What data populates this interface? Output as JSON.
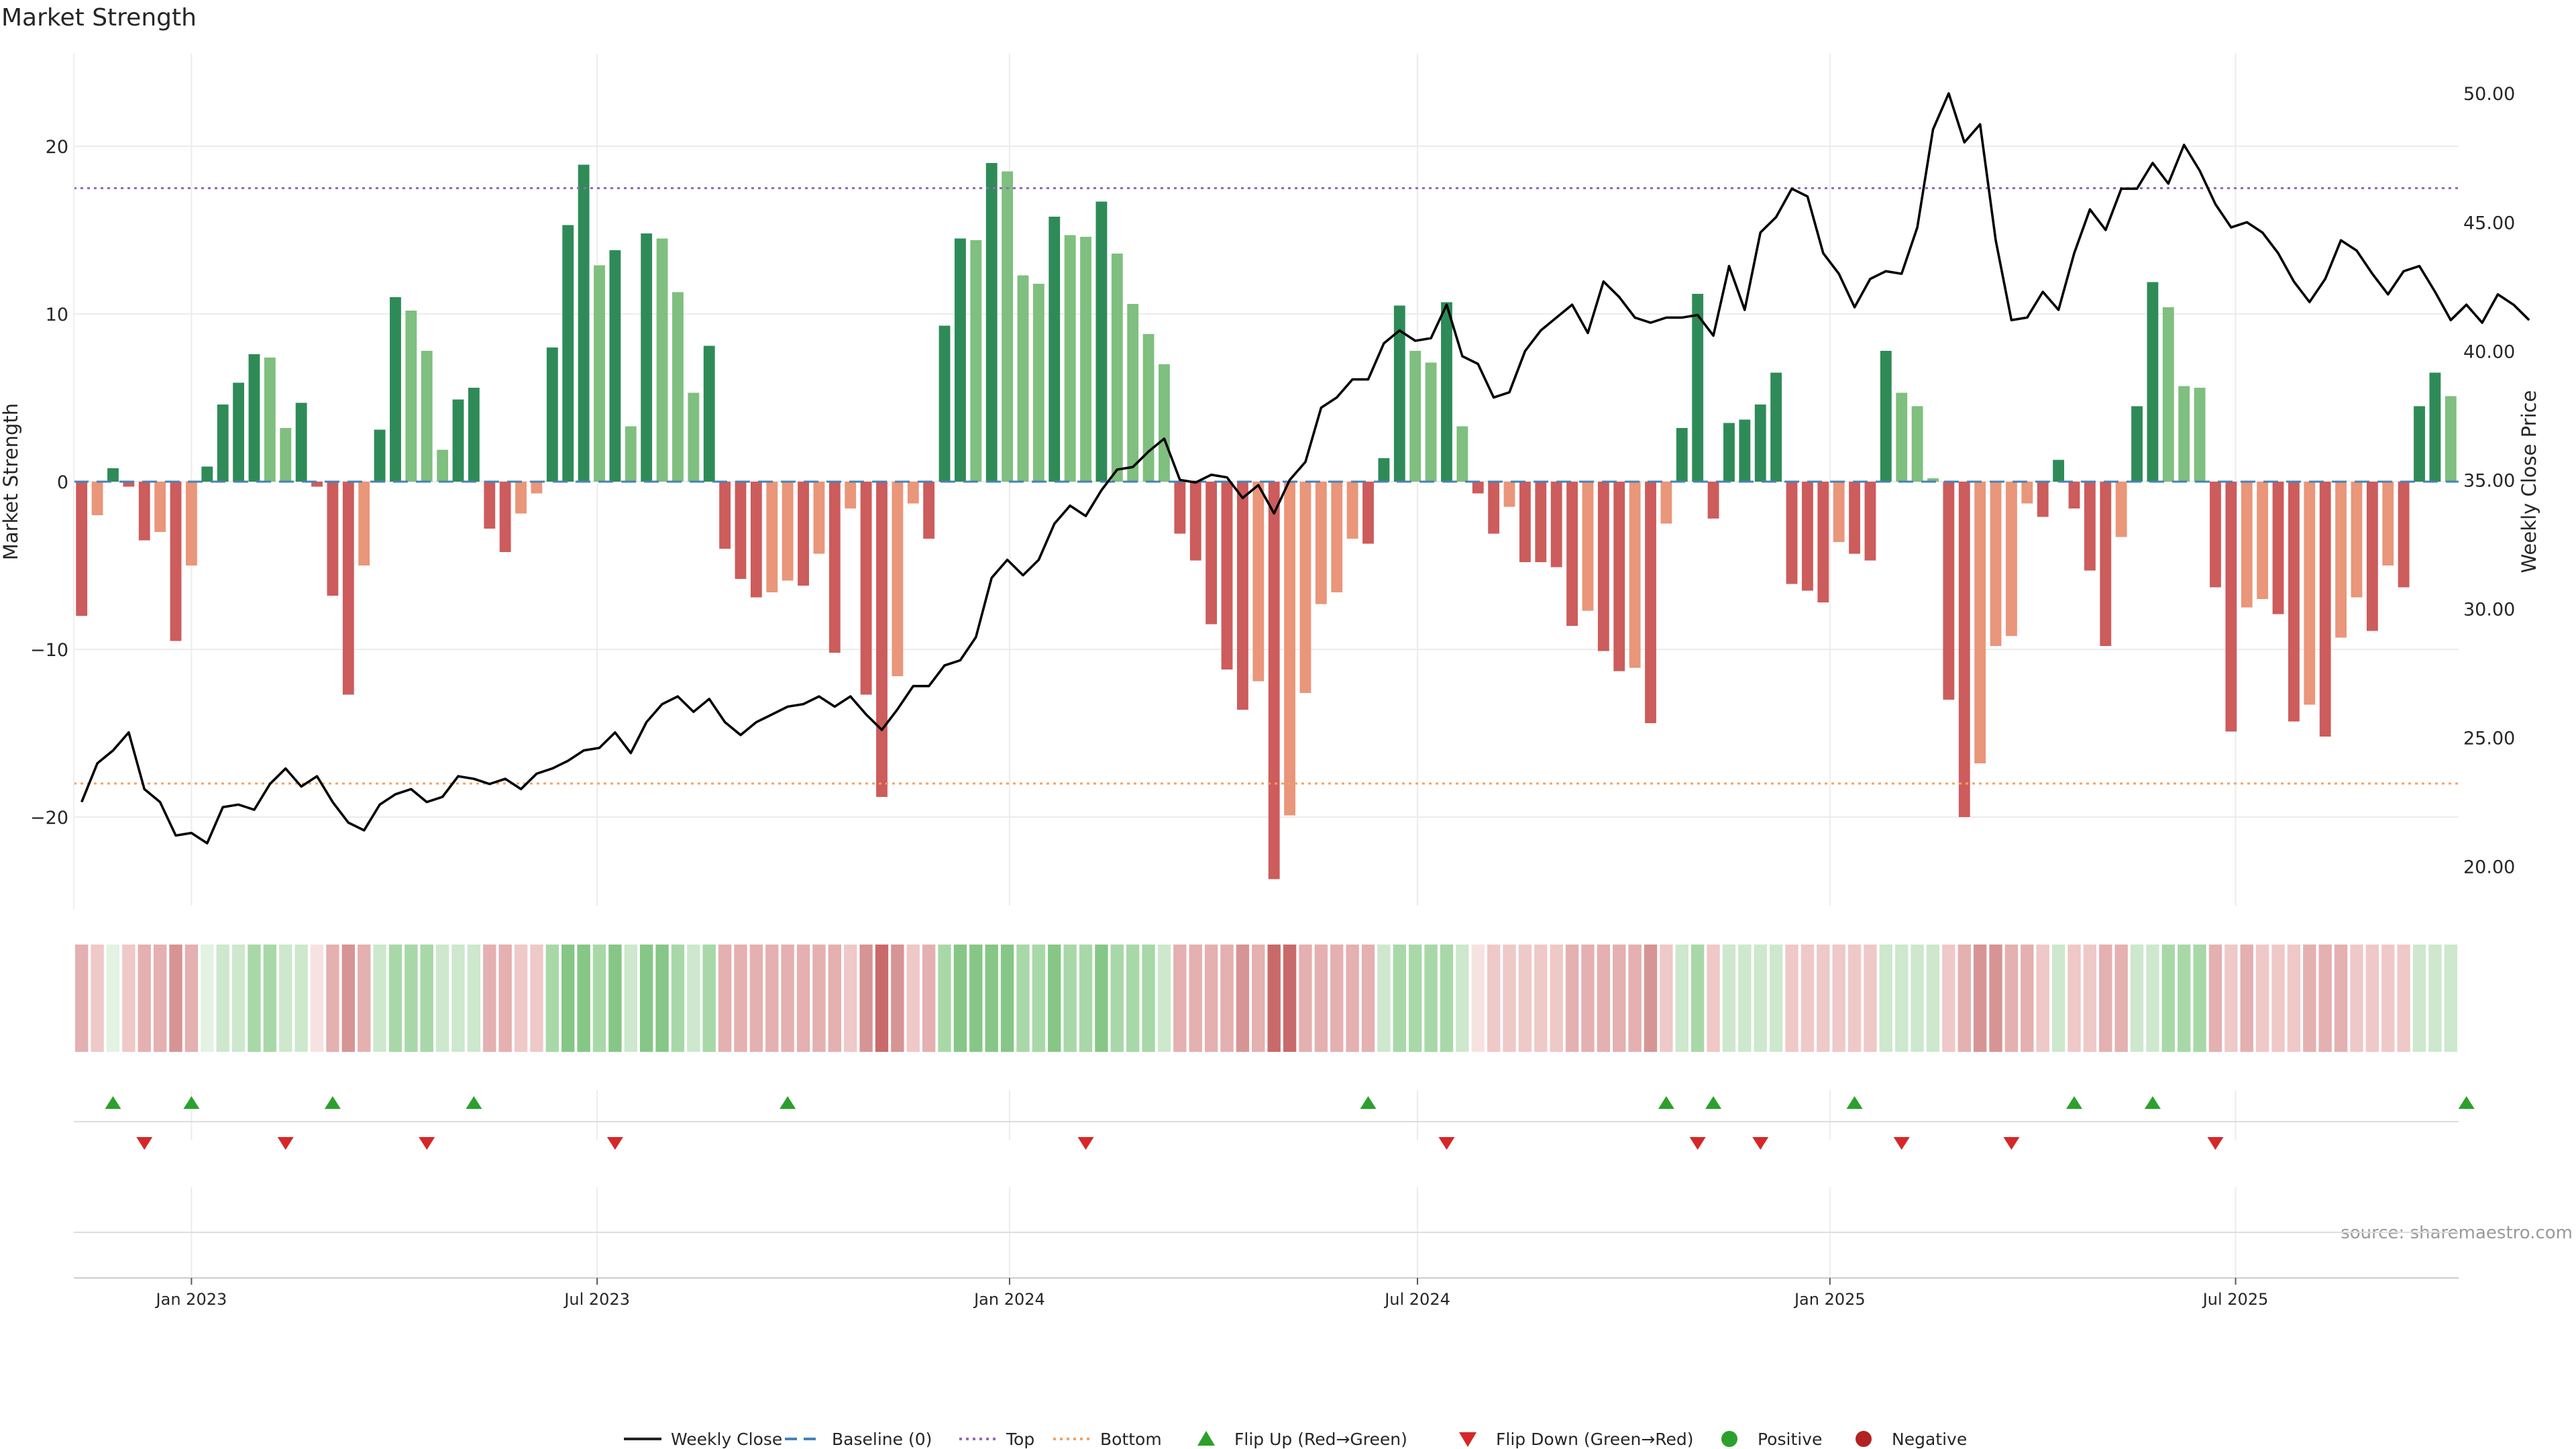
{
  "chart_data": {
    "type": "bar",
    "title": "Market Strength",
    "ylabel": "Market Strength",
    "y2label": "Weekly Close Price",
    "ylim": [
      -25.5,
      25.5
    ],
    "y2lim": [
      19.0,
      50.5
    ],
    "yticks": [
      "20",
      "10",
      "0",
      "−10",
      "−20"
    ],
    "y2ticks": [
      "50.00",
      "45.00",
      "40.00",
      "35.00",
      "30.00",
      "25.00",
      "20.00"
    ],
    "x_start": "2022-11-13",
    "x_step_days": 7,
    "xticks": [
      {
        "label": "Jan 2023",
        "date": "2023-01-01"
      },
      {
        "label": "Jul 2023",
        "date": "2023-07-01"
      },
      {
        "label": "Jan 2024",
        "date": "2024-01-01"
      },
      {
        "label": "Jul 2024",
        "date": "2024-07-01"
      },
      {
        "label": "Jan 2025",
        "date": "2025-01-01"
      },
      {
        "label": "Jul 2025",
        "date": "2025-07-01"
      }
    ],
    "top_level": 17.5,
    "bottom_level": -18,
    "grid": true,
    "legend_position": "bottom-center",
    "source": "source: sharemaestro.com",
    "strength": [
      -8,
      -2,
      0.8,
      -0.3,
      -3.5,
      -3,
      -9.5,
      -5,
      0.9,
      4.6,
      5.9,
      7.6,
      7.4,
      3.2,
      4.7,
      -0.3,
      -6.8,
      -12.7,
      -5,
      3.1,
      11,
      10.2,
      7.8,
      1.9,
      4.9,
      5.6,
      -2.8,
      -4.2,
      -1.9,
      -0.7,
      8,
      15.3,
      18.9,
      12.9,
      13.8,
      3.3,
      14.8,
      14.5,
      11.3,
      5.3,
      8.1,
      -4,
      -5.8,
      -6.9,
      -6.6,
      -5.9,
      -6.2,
      -4.3,
      -10.2,
      -1.6,
      -12.7,
      -18.8,
      -11.6,
      -1.3,
      -3.4,
      9.3,
      14.5,
      14.4,
      19,
      18.5,
      12.3,
      11.8,
      15.8,
      14.7,
      14.6,
      16.7,
      13.6,
      10.6,
      8.8,
      7,
      -3.1,
      -4.7,
      -8.5,
      -11.2,
      -13.6,
      -11.9,
      -23.7,
      -19.9,
      -12.6,
      -7.3,
      -6.6,
      -3.4,
      -3.7,
      1.4,
      10.5,
      7.8,
      7.1,
      10.7,
      3.3,
      -0.7,
      -3.1,
      -1.5,
      -4.8,
      -4.8,
      -5.1,
      -8.6,
      -7.7,
      -10.1,
      -11.3,
      -11.1,
      -14.4,
      -2.5,
      3.2,
      11.2,
      -2.2,
      3.5,
      3.7,
      4.6,
      6.5,
      -6.1,
      -6.5,
      -7.2,
      -3.6,
      -4.3,
      -4.7,
      7.8,
      5.3,
      4.5,
      0.2,
      -13,
      -20,
      -16.8,
      -9.8,
      -9.2,
      -1.3,
      -2.1,
      1.3,
      -1.6,
      -5.3,
      -9.8,
      -3.3,
      4.5,
      11.9,
      10.4,
      5.7,
      5.6,
      -6.3,
      -14.9,
      -7.5,
      -7,
      -7.9,
      -14.3,
      -13.3,
      -15.2,
      -9.3,
      -6.9,
      -8.9,
      -5,
      -6.3,
      4.5,
      6.5,
      5.1
    ],
    "weekly_close": [
      22.5,
      24,
      24.5,
      25.2,
      23,
      22.5,
      21.2,
      21.3,
      20.9,
      22.3,
      22.4,
      22.2,
      23.2,
      23.8,
      23.1,
      23.5,
      22.5,
      21.7,
      21.4,
      22.4,
      22.8,
      23,
      22.5,
      22.7,
      23.5,
      23.4,
      23.2,
      23.4,
      23,
      23.6,
      23.8,
      24.1,
      24.5,
      24.6,
      25.2,
      24.4,
      25.6,
      26.3,
      26.6,
      26,
      26.5,
      25.6,
      25.1,
      25.6,
      25.9,
      26.2,
      26.3,
      26.6,
      26.2,
      26.6,
      25.9,
      25.3,
      26.1,
      27,
      27,
      27.8,
      28,
      28.9,
      31.2,
      31.9,
      31.3,
      31.9,
      33.3,
      34,
      33.6,
      34.6,
      35.4,
      35.5,
      36.1,
      36.6,
      35,
      34.9,
      35.2,
      35.1,
      34.3,
      34.8,
      33.7,
      35,
      35.7,
      37.8,
      38.2,
      38.9,
      38.9,
      40.3,
      40.8,
      40.4,
      40.5,
      41.8,
      39.8,
      39.5,
      38.2,
      38.4,
      40,
      40.8,
      41.3,
      41.8,
      40.7,
      42.7,
      42.1,
      41.3,
      41.1,
      41.3,
      41.3,
      41.4,
      40.6,
      43.3,
      41.6,
      44.6,
      45.2,
      46.3,
      46,
      43.8,
      43,
      41.7,
      42.8,
      43.1,
      43,
      44.8,
      48.6,
      50,
      48.1,
      48.8,
      44.3,
      41.2,
      41.3,
      42.3,
      41.6,
      43.8,
      45.5,
      44.7,
      46.3,
      46.3,
      47.3,
      46.5,
      48,
      47,
      45.7,
      44.8,
      45,
      44.6,
      43.8,
      42.7,
      41.9,
      42.8,
      44.3,
      43.9,
      43,
      42.2,
      43.1,
      43.3,
      42.3,
      41.2,
      41.8,
      41.1,
      42.2,
      41.8,
      41.2
    ],
    "heat_shades": [
      3,
      2,
      1,
      2,
      3,
      3,
      4,
      3,
      1,
      2,
      2,
      3,
      3,
      2,
      2,
      1,
      3,
      4,
      3,
      2,
      3,
      3,
      3,
      2,
      2,
      2,
      3,
      3,
      2,
      2,
      3,
      4,
      4,
      3,
      4,
      2,
      4,
      4,
      3,
      2,
      3,
      3,
      3,
      3,
      3,
      3,
      3,
      3,
      3,
      2,
      4,
      5,
      4,
      2,
      3,
      3,
      4,
      4,
      4,
      4,
      3,
      3,
      4,
      3,
      3,
      4,
      3,
      3,
      3,
      2,
      3,
      3,
      3,
      3,
      4,
      3,
      5,
      5,
      3,
      3,
      3,
      3,
      3,
      2,
      3,
      3,
      3,
      3,
      2,
      1,
      2,
      2,
      2,
      2,
      2,
      3,
      3,
      3,
      3,
      3,
      4,
      2,
      2,
      3,
      2,
      2,
      2,
      2,
      2,
      2,
      2,
      2,
      2,
      2,
      2,
      2,
      2,
      2,
      2,
      2,
      3,
      4,
      4,
      3,
      3,
      2,
      2,
      2,
      2,
      3,
      3,
      2,
      2,
      3,
      3,
      3,
      3,
      2,
      3,
      2,
      2,
      2,
      3,
      3,
      3,
      2,
      2,
      2,
      2,
      2,
      2,
      2,
      2
    ],
    "flip_up_dates": [
      "2022-11-27",
      "2023-01-01",
      "2023-03-05",
      "2023-05-07",
      "2023-09-24",
      "2024-06-09",
      "2024-10-20",
      "2024-11-10",
      "2025-01-12",
      "2025-04-20",
      "2025-05-25",
      "2025-10-12"
    ],
    "flip_down_dates": [
      "2022-12-11",
      "2023-02-12",
      "2023-04-16",
      "2023-07-09",
      "2024-02-04",
      "2024-07-14",
      "2024-11-03",
      "2024-12-01",
      "2025-02-02",
      "2025-03-23",
      "2025-06-22"
    ],
    "colors": {
      "green_dark": "#2e8b57",
      "green_light": "#7fbf7f",
      "red_dark": "#cd5c5c",
      "red_light": "#e9967a",
      "line": "#000000",
      "baseline": "#4682b4",
      "top": "#9467bd",
      "bottom": "#f4a261",
      "flip_up": "#2ca02c",
      "flip_down": "#d62728",
      "positive": "#2ca02c",
      "negative": "#b22222"
    }
  },
  "legend": [
    {
      "label": "Weekly Close",
      "kind": "line",
      "color": "#222222"
    },
    {
      "label": "Baseline (0)",
      "kind": "dash",
      "color": "#4682b4"
    },
    {
      "label": "Top",
      "kind": "dot",
      "color": "#9467bd"
    },
    {
      "label": "Bottom",
      "kind": "dot",
      "color": "#f4a261"
    },
    {
      "label": "Flip Up (Red→Green)",
      "kind": "tri-up",
      "color": "#2ca02c"
    },
    {
      "label": "Flip Down (Green→Red)",
      "kind": "tri-down",
      "color": "#d62728"
    },
    {
      "label": "Positive",
      "kind": "circle",
      "color": "#2ca02c"
    },
    {
      "label": "Negative",
      "kind": "circle",
      "color": "#b22222"
    }
  ]
}
